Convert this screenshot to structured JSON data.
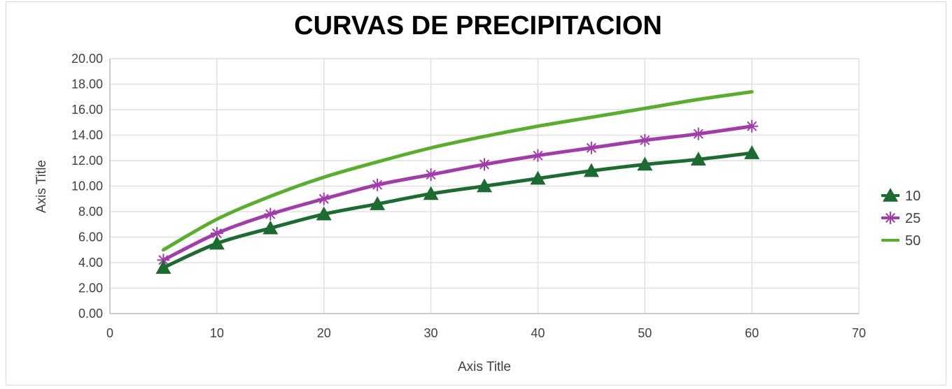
{
  "chart_data": {
    "type": "line",
    "title": "CURVAS DE PRECIPITACION",
    "xlabel": "Axis Title",
    "ylabel": "Axis Title",
    "xlim": [
      0,
      70
    ],
    "ylim": [
      0,
      20
    ],
    "x_ticks": [
      "0",
      "10",
      "20",
      "30",
      "40",
      "50",
      "60",
      "70"
    ],
    "y_ticks": [
      "0.00",
      "2.00",
      "4.00",
      "6.00",
      "8.00",
      "10.00",
      "12.00",
      "14.00",
      "16.00",
      "18.00",
      "20.00"
    ],
    "grid": true,
    "legend_position": "right",
    "x": [
      5,
      10,
      15,
      20,
      25,
      30,
      35,
      40,
      45,
      50,
      55,
      60
    ],
    "series": [
      {
        "name": "10",
        "marker": "triangle",
        "color": "#1e6b32",
        "values": [
          3.6,
          5.5,
          6.7,
          7.8,
          8.6,
          9.4,
          10.0,
          10.6,
          11.2,
          11.7,
          12.1,
          12.6
        ]
      },
      {
        "name": "25",
        "marker": "star",
        "color": "#a13da9",
        "values": [
          4.2,
          6.3,
          7.8,
          9.0,
          10.1,
          10.9,
          11.7,
          12.4,
          13.0,
          13.6,
          14.1,
          14.7
        ]
      },
      {
        "name": "50",
        "marker": "none",
        "color": "#5aae2f",
        "values": [
          5.0,
          7.4,
          9.2,
          10.7,
          11.9,
          13.0,
          13.9,
          14.7,
          15.4,
          16.1,
          16.8,
          17.4
        ]
      }
    ]
  }
}
